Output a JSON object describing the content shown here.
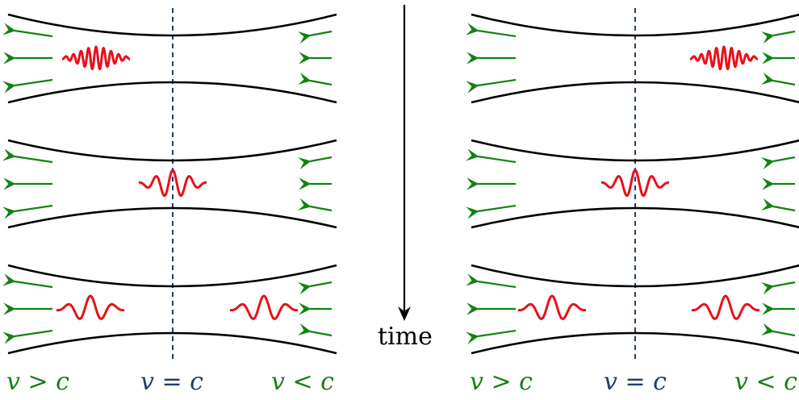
{
  "labels": {
    "time": "time",
    "left_fast": "v > c",
    "left_equal": "v = c",
    "left_slow": "v < c",
    "right_fast": "v > c",
    "right_equal": "v = c",
    "right_slow": "v < c"
  },
  "colors": {
    "fluid_arrows": "#138213",
    "wave_packet": "#e8111b",
    "horizon_line": "#1f3f6b",
    "walls": "#000000",
    "label_green": "#1a7d1a",
    "label_blue": "#1f3f6b"
  },
  "icons": {
    "flow": "arrow-left-icon",
    "time": "arrow-down-icon"
  }
}
